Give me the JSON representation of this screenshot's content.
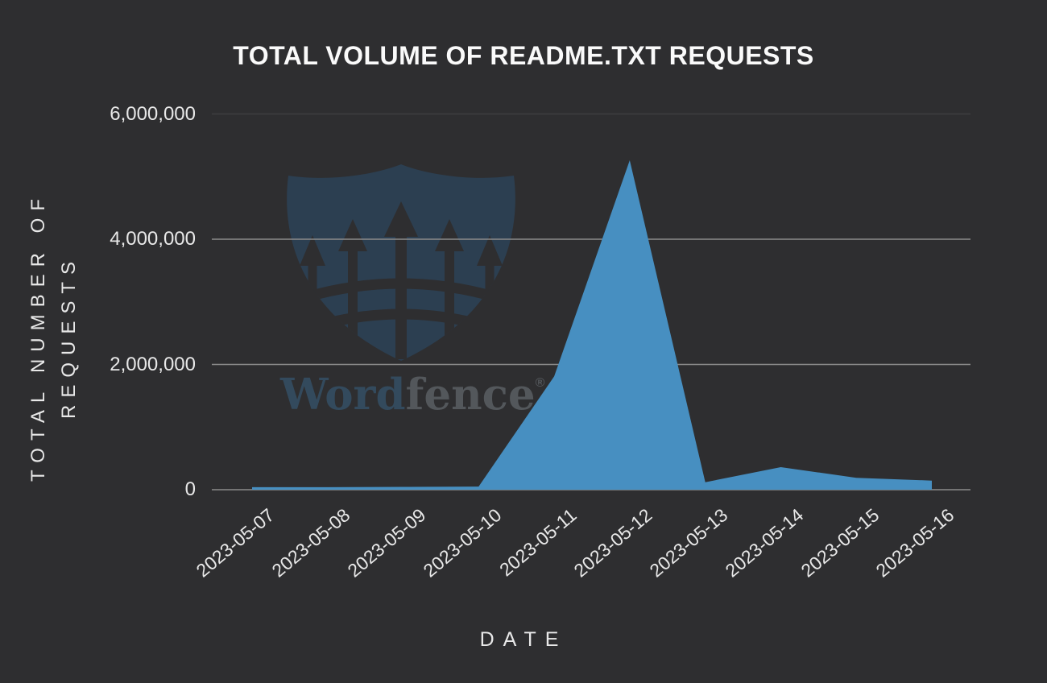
{
  "title": "TOTAL VOLUME OF README.TXT REQUESTS",
  "watermark": {
    "brand_word": "Word",
    "brand_fence": "fence",
    "registered_mark": "®"
  },
  "chart_data": {
    "type": "area",
    "title": "TOTAL VOLUME OF README.TXT REQUESTS",
    "xlabel": "DATE",
    "ylabel": "TOTAL NUMBER OF REQUESTS",
    "ylabel_lines": [
      "TOTAL NUMBER OF",
      "REQUESTS"
    ],
    "categories": [
      "2023-05-07",
      "2023-05-08",
      "2023-05-09",
      "2023-05-10",
      "2023-05-11",
      "2023-05-12",
      "2023-05-13",
      "2023-05-14",
      "2023-05-15",
      "2023-05-16"
    ],
    "values": [
      40000,
      40000,
      45000,
      50000,
      1810000,
      5260000,
      120000,
      360000,
      190000,
      145000
    ],
    "yticks": [
      {
        "value": 0,
        "label": "0"
      },
      {
        "value": 2000000,
        "label": "2,000,000"
      },
      {
        "value": 4000000,
        "label": "4,000,000"
      },
      {
        "value": 6000000,
        "label": "6,000,000"
      }
    ],
    "ylim": [
      0,
      6000000
    ],
    "grid": "horizontal",
    "legend": "none",
    "area_color": "#478fc1",
    "background_color": "#2e2e30"
  },
  "colors": {
    "area": "#478fc1",
    "background": "#2e2e30",
    "grid_bright": "#8b8b8b",
    "grid_dim": "#3e3e40",
    "title_text": "#fafafa",
    "axis_text": "#e8e8e8",
    "watermark_shield": "#2c3f51",
    "watermark_word": "#334a5d",
    "watermark_fence": "#53575b"
  }
}
